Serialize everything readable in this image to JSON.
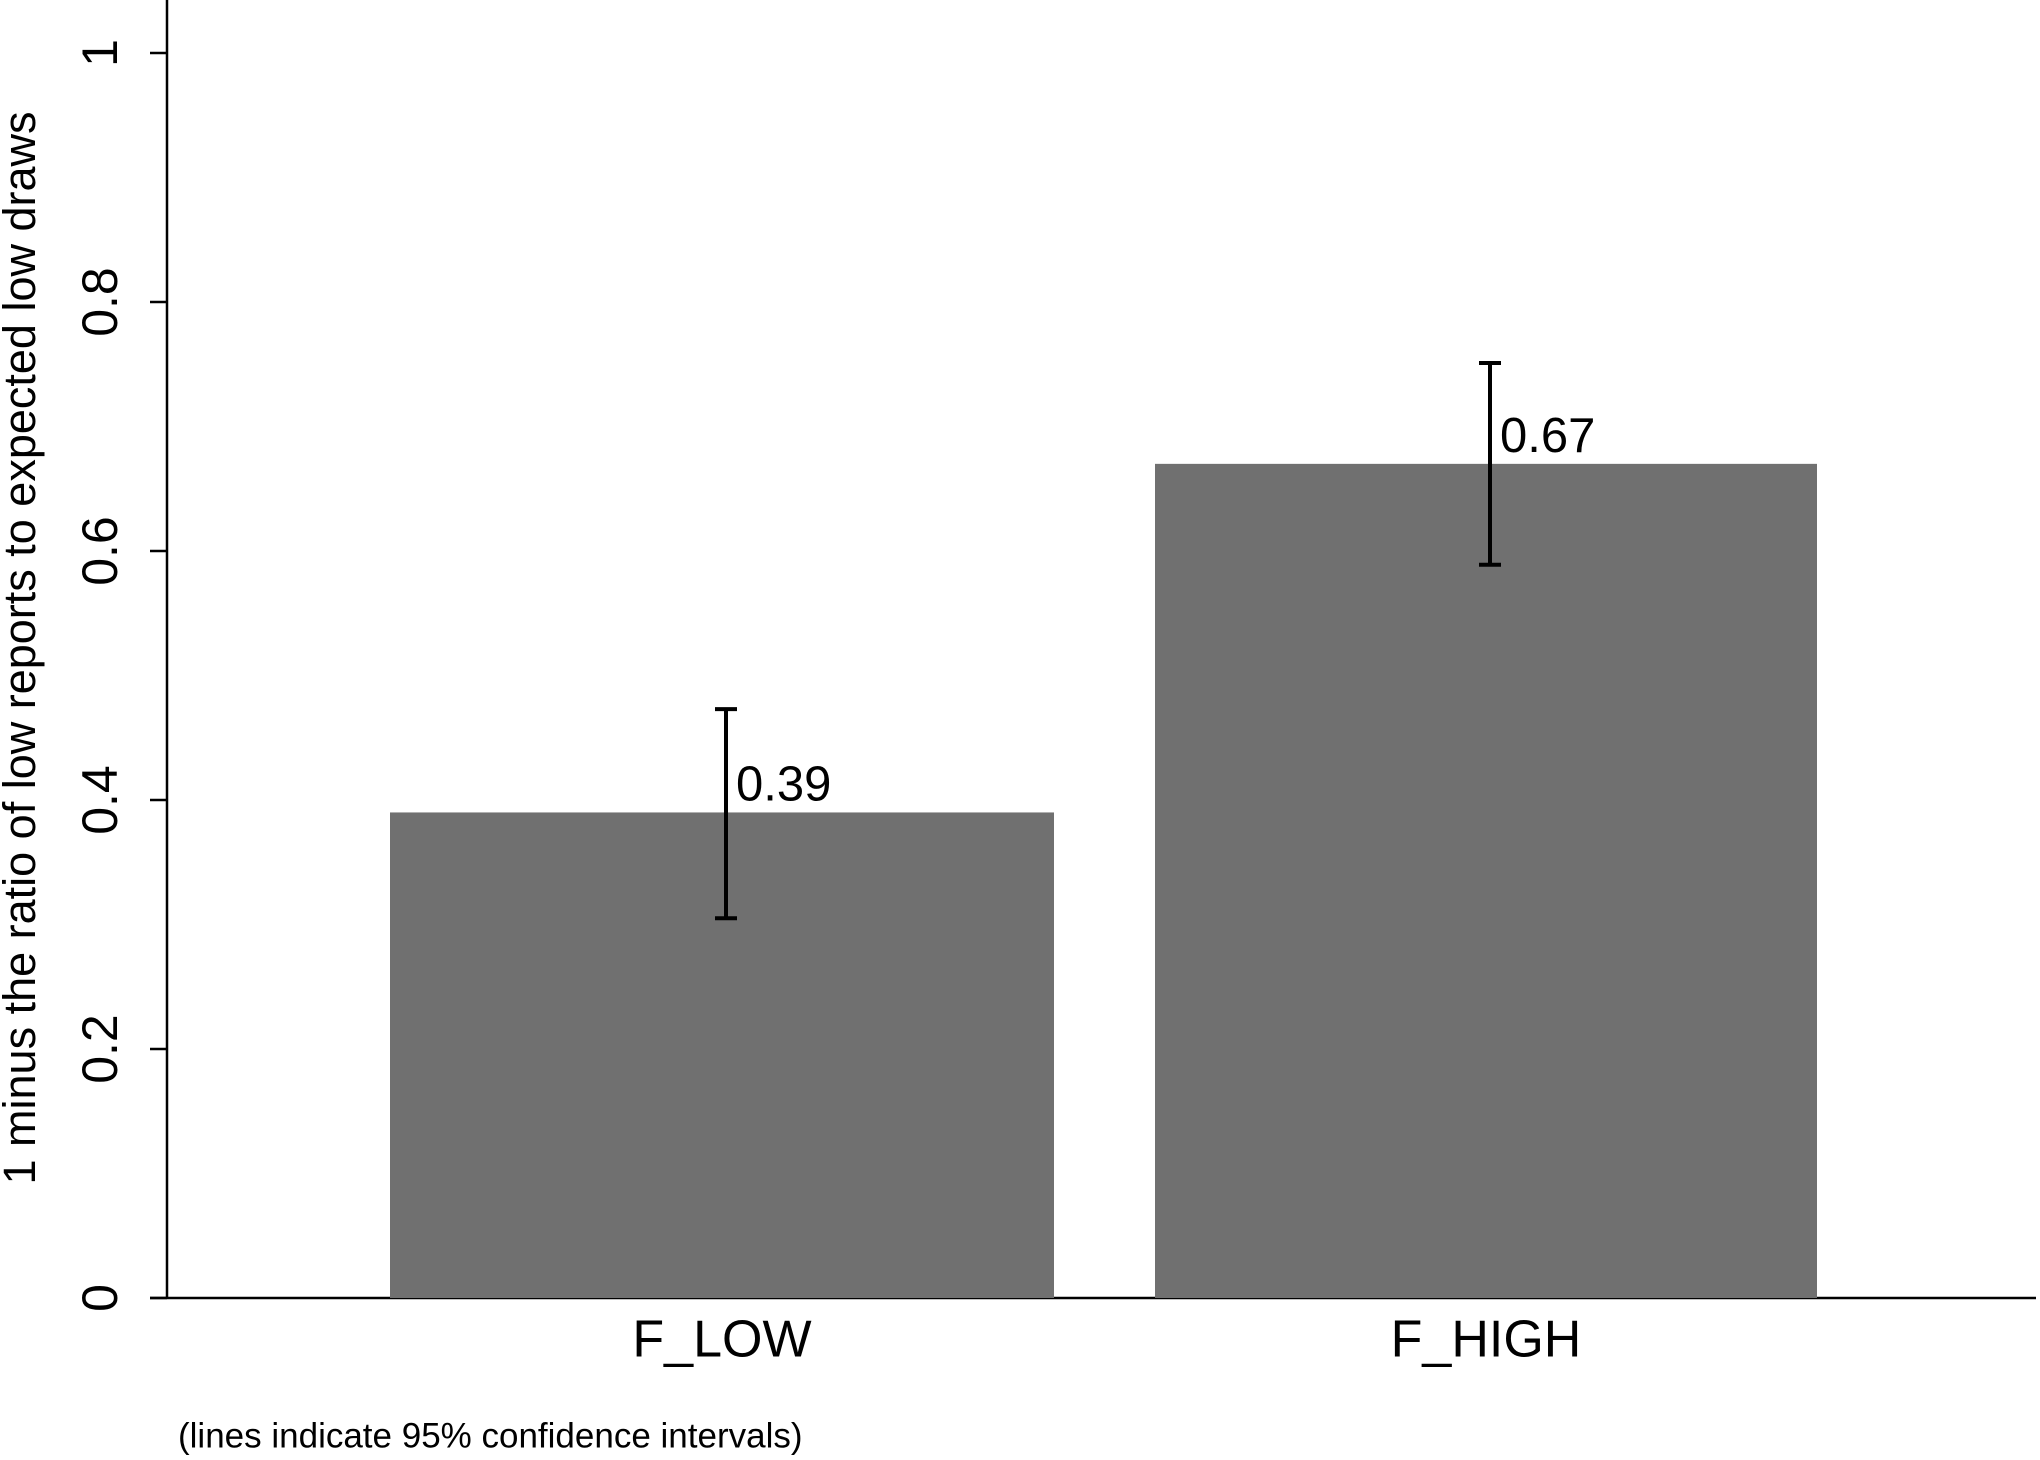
{
  "chart_data": {
    "type": "bar",
    "y_label": "1 minus the ratio of low reports to expected low draws",
    "note": "(lines indicate 95% confidence intervals)",
    "categories": [
      "F_LOW",
      "F_HIGH"
    ],
    "values": [
      0.39,
      0.67
    ],
    "ci_lower": [
      0.305,
      0.589
    ],
    "ci_upper": [
      0.473,
      0.751
    ],
    "color": "#707070",
    "ylim": [
      0,
      1
    ],
    "yticks": [
      0,
      0.2,
      0.4,
      0.6,
      0.8,
      1
    ]
  }
}
